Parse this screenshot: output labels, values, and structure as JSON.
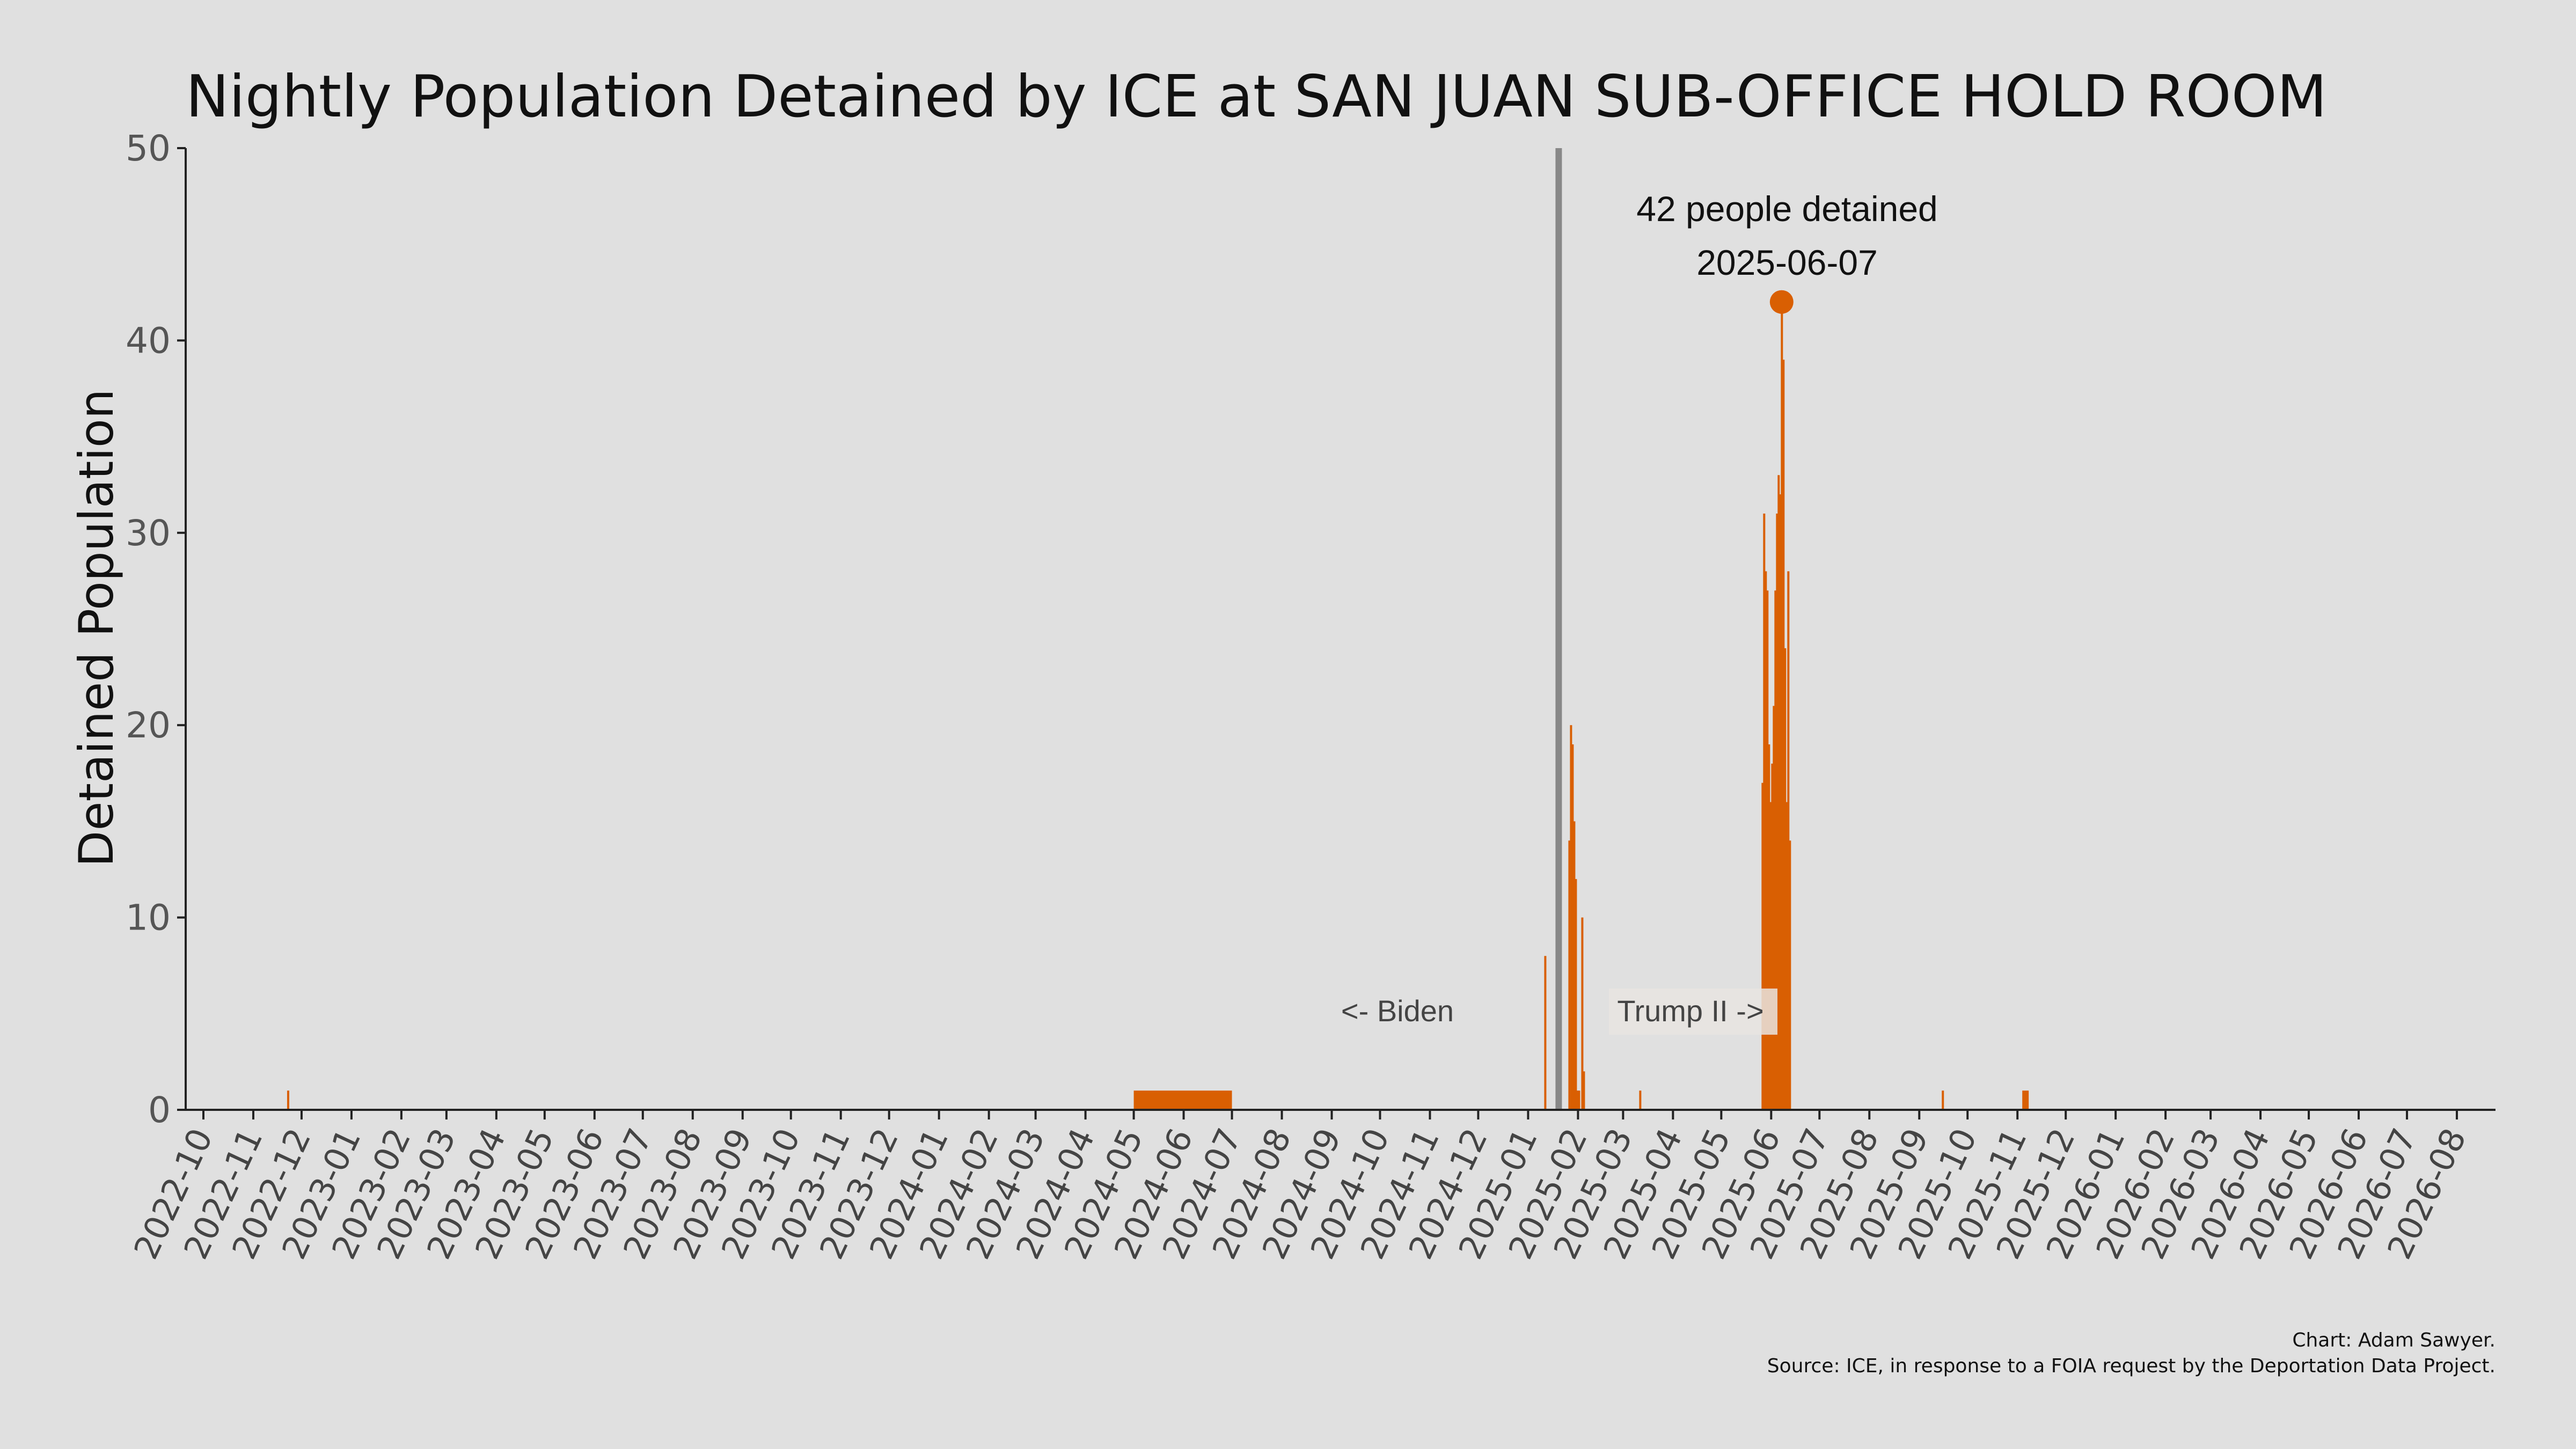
{
  "colors": {
    "background": "#e0e0e0",
    "bar": "#d95f02",
    "divider": "#888888",
    "axis": "#222222"
  },
  "chart_data": {
    "type": "bar",
    "title": "Nightly Population Detained by ICE at SAN JUAN SUB-OFFICE HOLD ROOM",
    "ylabel": "Detained Population",
    "xlabel": "",
    "ylim": [
      0,
      50
    ],
    "xlim": [
      "2022-09-20",
      "2026-08-25"
    ],
    "yticks": [
      0,
      10,
      20,
      30,
      40,
      50
    ],
    "xticks": [
      "2022-10",
      "2022-11",
      "2022-12",
      "2023-01",
      "2023-02",
      "2023-03",
      "2023-04",
      "2023-05",
      "2023-06",
      "2023-07",
      "2023-08",
      "2023-09",
      "2023-10",
      "2023-11",
      "2023-12",
      "2024-01",
      "2024-02",
      "2024-03",
      "2024-04",
      "2024-05",
      "2024-06",
      "2024-07",
      "2024-08",
      "2024-09",
      "2024-10",
      "2024-11",
      "2024-12",
      "2025-01",
      "2025-02",
      "2025-03",
      "2025-04",
      "2025-05",
      "2025-06",
      "2025-07",
      "2025-08",
      "2025-09",
      "2025-10",
      "2025-11",
      "2025-12",
      "2026-01",
      "2026-02",
      "2026-03",
      "2026-04",
      "2026-05",
      "2026-06",
      "2026-07",
      "2026-08"
    ],
    "grid": false,
    "series": [
      {
        "values": [
          {
            "date": "2022-11-22",
            "value": 1
          },
          {
            "date": "2024-05-01",
            "end": "2024-06-30",
            "value": 1
          },
          {
            "date": "2025-01-11",
            "value": 8
          },
          {
            "date": "2025-01-26",
            "value": 14
          },
          {
            "date": "2025-01-27",
            "value": 20
          },
          {
            "date": "2025-01-28",
            "value": 19
          },
          {
            "date": "2025-01-29",
            "value": 15
          },
          {
            "date": "2025-01-30",
            "value": 12
          },
          {
            "date": "2025-01-31",
            "value": 1
          },
          {
            "date": "2025-02-01",
            "value": 1
          },
          {
            "date": "2025-02-03",
            "value": 10
          },
          {
            "date": "2025-02-04",
            "value": 2
          },
          {
            "date": "2025-03-11",
            "value": 1
          },
          {
            "date": "2025-05-26",
            "value": 17
          },
          {
            "date": "2025-05-27",
            "value": 31
          },
          {
            "date": "2025-05-28",
            "value": 28
          },
          {
            "date": "2025-05-29",
            "value": 27
          },
          {
            "date": "2025-05-30",
            "value": 19
          },
          {
            "date": "2025-05-31",
            "value": 16
          },
          {
            "date": "2025-06-01",
            "value": 18
          },
          {
            "date": "2025-06-02",
            "value": 21
          },
          {
            "date": "2025-06-03",
            "value": 27
          },
          {
            "date": "2025-06-04",
            "value": 31
          },
          {
            "date": "2025-06-05",
            "value": 33
          },
          {
            "date": "2025-06-06",
            "value": 32
          },
          {
            "date": "2025-06-07",
            "value": 42
          },
          {
            "date": "2025-06-08",
            "value": 39
          },
          {
            "date": "2025-06-09",
            "value": 24
          },
          {
            "date": "2025-06-10",
            "value": 16
          },
          {
            "date": "2025-06-11",
            "value": 28
          },
          {
            "date": "2025-06-12",
            "value": 14
          },
          {
            "date": "2025-09-15",
            "value": 1
          },
          {
            "date": "2025-11-04",
            "end": "2025-11-07",
            "value": 1
          }
        ]
      }
    ],
    "divider": {
      "date": "2025-01-20"
    },
    "era_labels": {
      "left": "<- Biden",
      "right": "Trump II ->"
    },
    "peak": {
      "date": "2025-06-07",
      "value": 42,
      "line1": "42 people detained",
      "line2": "2025-06-07"
    }
  },
  "credits": {
    "line1": "Chart: Adam Sawyer.",
    "line2": "Source: ICE, in response to a FOIA request by the Deportation Data Project."
  }
}
